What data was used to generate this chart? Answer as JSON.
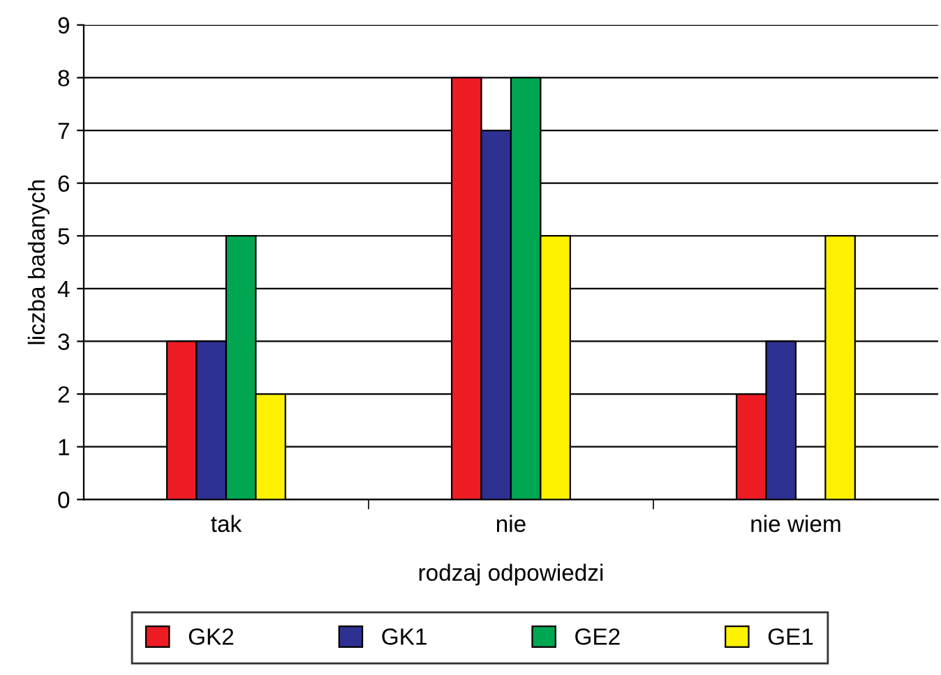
{
  "chart_data": {
    "type": "bar",
    "xlabel": "rodzaj odpowiedzi",
    "ylabel": "liczba badanych",
    "categories": [
      "tak",
      "nie",
      "nie wiem"
    ],
    "series": [
      {
        "name": "GK2",
        "color": "#ed1c24",
        "values": [
          3,
          8,
          2
        ]
      },
      {
        "name": "GK1",
        "color": "#2e3192",
        "values": [
          3,
          7,
          3
        ]
      },
      {
        "name": "GE2",
        "color": "#00a651",
        "values": [
          5,
          8,
          null
        ]
      },
      {
        "name": "GE1",
        "color": "#fff200",
        "values": [
          2,
          5,
          5
        ]
      }
    ],
    "ylim": [
      0,
      9
    ],
    "yticks": [
      0,
      1,
      2,
      3,
      4,
      5,
      6,
      7,
      8,
      9
    ],
    "grid": "y",
    "legend": "bottom"
  }
}
